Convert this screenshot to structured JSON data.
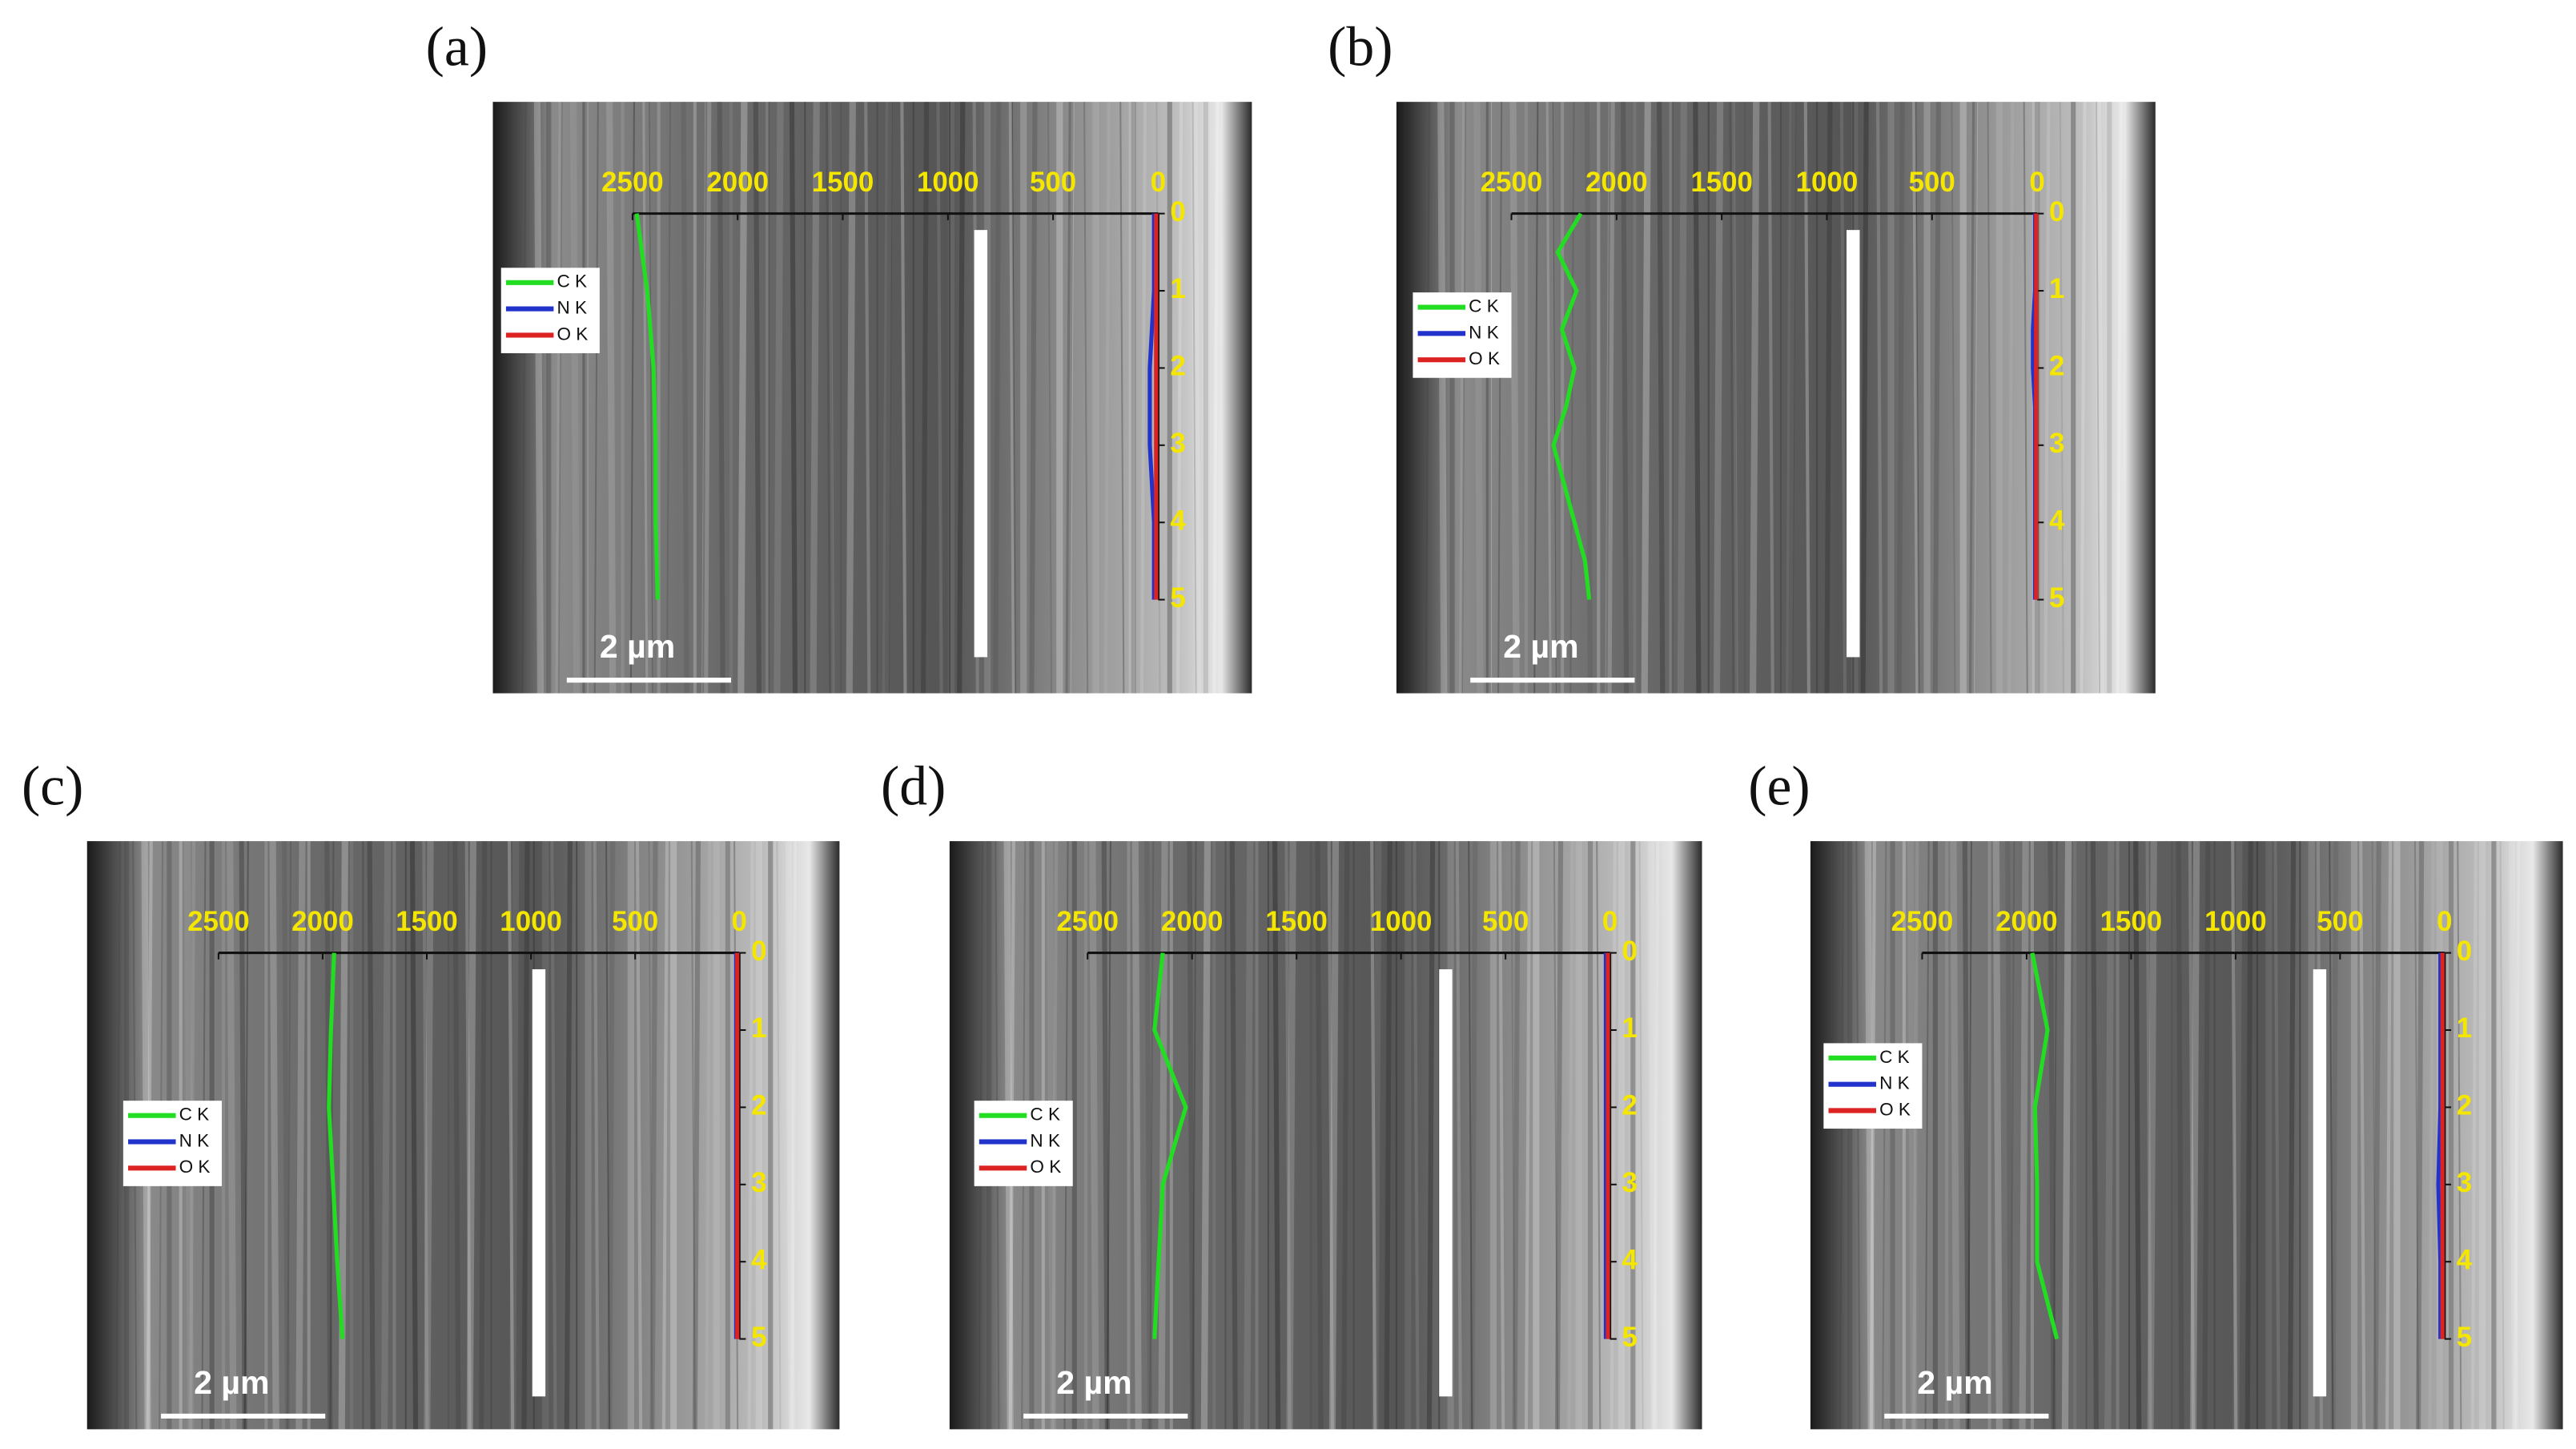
{
  "chart_data": [
    {
      "type": "line",
      "title": "(a)",
      "annotation": "2 µm",
      "xlim": [
        2500,
        0
      ],
      "xticks": [
        2500,
        2000,
        1500,
        1000,
        500,
        0
      ],
      "ylim": [
        0,
        5
      ],
      "yticks": [
        0,
        1,
        2,
        3,
        4,
        5
      ],
      "y": [
        0,
        1,
        2,
        3,
        4,
        5
      ],
      "series": [
        {
          "name": "C K",
          "color": "#22dd22",
          "values": [
            2480,
            2430,
            2400,
            2390,
            2390,
            2380
          ]
        },
        {
          "name": "N K",
          "color": "#2233cc",
          "values": [
            20,
            20,
            40,
            40,
            20,
            20
          ]
        },
        {
          "name": "O K",
          "color": "#dd2222",
          "values": [
            10,
            10,
            10,
            10,
            10,
            10
          ]
        }
      ]
    },
    {
      "type": "line",
      "title": "(b)",
      "annotation": "2 µm",
      "xlim": [
        2500,
        0
      ],
      "xticks": [
        2500,
        2000,
        1500,
        1000,
        500,
        0
      ],
      "ylim": [
        0,
        5
      ],
      "yticks": [
        0,
        1,
        2,
        3,
        4,
        5
      ],
      "y": [
        0,
        0.5,
        1,
        1.5,
        2,
        2.5,
        3,
        3.5,
        4,
        4.5,
        5
      ],
      "series": [
        {
          "name": "C K",
          "color": "#22dd22",
          "values": [
            2170,
            2280,
            2190,
            2260,
            2200,
            2240,
            2300,
            2250,
            2200,
            2150,
            2130
          ]
        },
        {
          "name": "N K",
          "color": "#2233cc",
          "values": [
            10,
            10,
            10,
            20,
            20,
            10,
            10,
            10,
            10,
            10,
            10
          ]
        },
        {
          "name": "O K",
          "color": "#dd2222",
          "values": [
            5,
            5,
            5,
            5,
            5,
            5,
            5,
            5,
            5,
            5,
            5
          ]
        }
      ]
    },
    {
      "type": "line",
      "title": "(c)",
      "annotation": "2 µm",
      "xlim": [
        2500,
        0
      ],
      "xticks": [
        2500,
        2000,
        1500,
        1000,
        500,
        0
      ],
      "ylim": [
        0,
        5
      ],
      "yticks": [
        0,
        1,
        2,
        3,
        4,
        5
      ],
      "y": [
        0,
        1,
        2,
        3,
        4,
        5
      ],
      "series": [
        {
          "name": "C K",
          "color": "#22dd22",
          "values": [
            1945,
            1960,
            1970,
            1950,
            1930,
            1905
          ]
        },
        {
          "name": "N K",
          "color": "#2233cc",
          "values": [
            15,
            15,
            15,
            15,
            15,
            15
          ]
        },
        {
          "name": "O K",
          "color": "#dd2222",
          "values": [
            10,
            10,
            10,
            10,
            10,
            10
          ]
        }
      ]
    },
    {
      "type": "line",
      "title": "(d)",
      "annotation": "2 µm",
      "xlim": [
        2500,
        0
      ],
      "xticks": [
        2500,
        2000,
        1500,
        1000,
        500,
        0
      ],
      "ylim": [
        0,
        5
      ],
      "yticks": [
        0,
        1,
        2,
        3,
        4,
        5
      ],
      "y": [
        0,
        1,
        2,
        3,
        4,
        5
      ],
      "series": [
        {
          "name": "C K",
          "color": "#22dd22",
          "values": [
            2140,
            2180,
            2030,
            2140,
            2160,
            2180
          ]
        },
        {
          "name": "N K",
          "color": "#2233cc",
          "values": [
            20,
            20,
            20,
            20,
            20,
            20
          ]
        },
        {
          "name": "O K",
          "color": "#dd2222",
          "values": [
            10,
            10,
            10,
            10,
            10,
            10
          ]
        }
      ]
    },
    {
      "type": "line",
      "title": "(e)",
      "annotation": "2 µm",
      "xlim": [
        2500,
        0
      ],
      "xticks": [
        2500,
        2000,
        1500,
        1000,
        500,
        0
      ],
      "ylim": [
        0,
        5
      ],
      "yticks": [
        0,
        1,
        2,
        3,
        4,
        5
      ],
      "y": [
        0,
        1,
        2,
        3,
        4,
        5
      ],
      "series": [
        {
          "name": "C K",
          "color": "#22dd22",
          "values": [
            1973,
            1900,
            1960,
            1950,
            1950,
            1855
          ]
        },
        {
          "name": "N K",
          "color": "#2233cc",
          "values": [
            20,
            20,
            20,
            30,
            20,
            20
          ]
        },
        {
          "name": "O K",
          "color": "#dd2222",
          "values": [
            10,
            10,
            10,
            10,
            10,
            10
          ]
        }
      ]
    }
  ]
}
